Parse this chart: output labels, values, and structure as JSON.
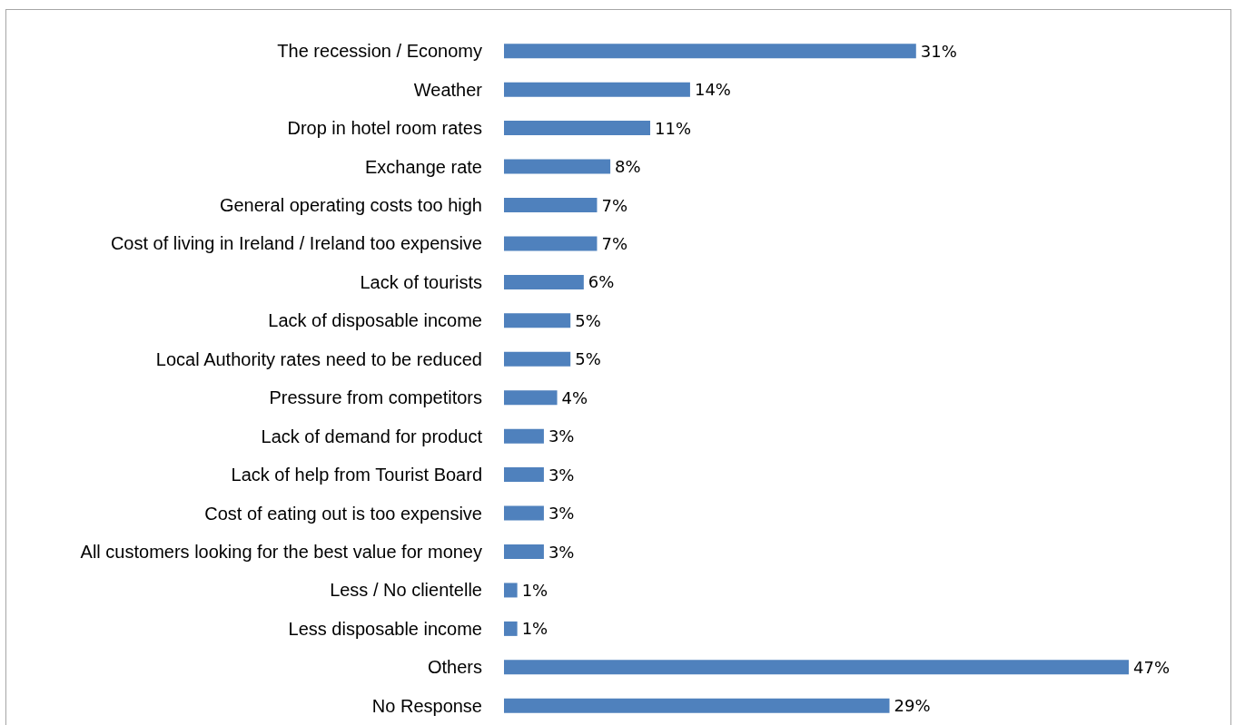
{
  "chart_data": {
    "type": "bar",
    "orientation": "horizontal",
    "categories": [
      "The recession / Economy",
      "Weather",
      "Drop in hotel room rates",
      "Exchange rate",
      "General operating costs too high",
      "Cost of living in Ireland / Ireland too expensive",
      "Lack of tourists",
      "Lack of disposable income",
      "Local Authority rates need to be reduced",
      "Pressure from competitors",
      "Lack of demand for product",
      "Lack of help from Tourist Board",
      "Cost of eating out is too expensive",
      "All customers looking for the best value for money",
      "Less / No clientelle",
      "Less disposable income",
      "Others",
      "No Response"
    ],
    "values": [
      31,
      14,
      11,
      8,
      7,
      7,
      6,
      5,
      5,
      4,
      3,
      3,
      3,
      3,
      1,
      1,
      47,
      29
    ],
    "value_labels": [
      "31%",
      "14%",
      "11%",
      "8%",
      "7%",
      "7%",
      "6%",
      "5%",
      "5%",
      "4%",
      "3%",
      "3%",
      "3%",
      "3%",
      "1%",
      "1%",
      "47%",
      "29%"
    ],
    "color": "#4f81bd",
    "tick_labels": "y"
  }
}
